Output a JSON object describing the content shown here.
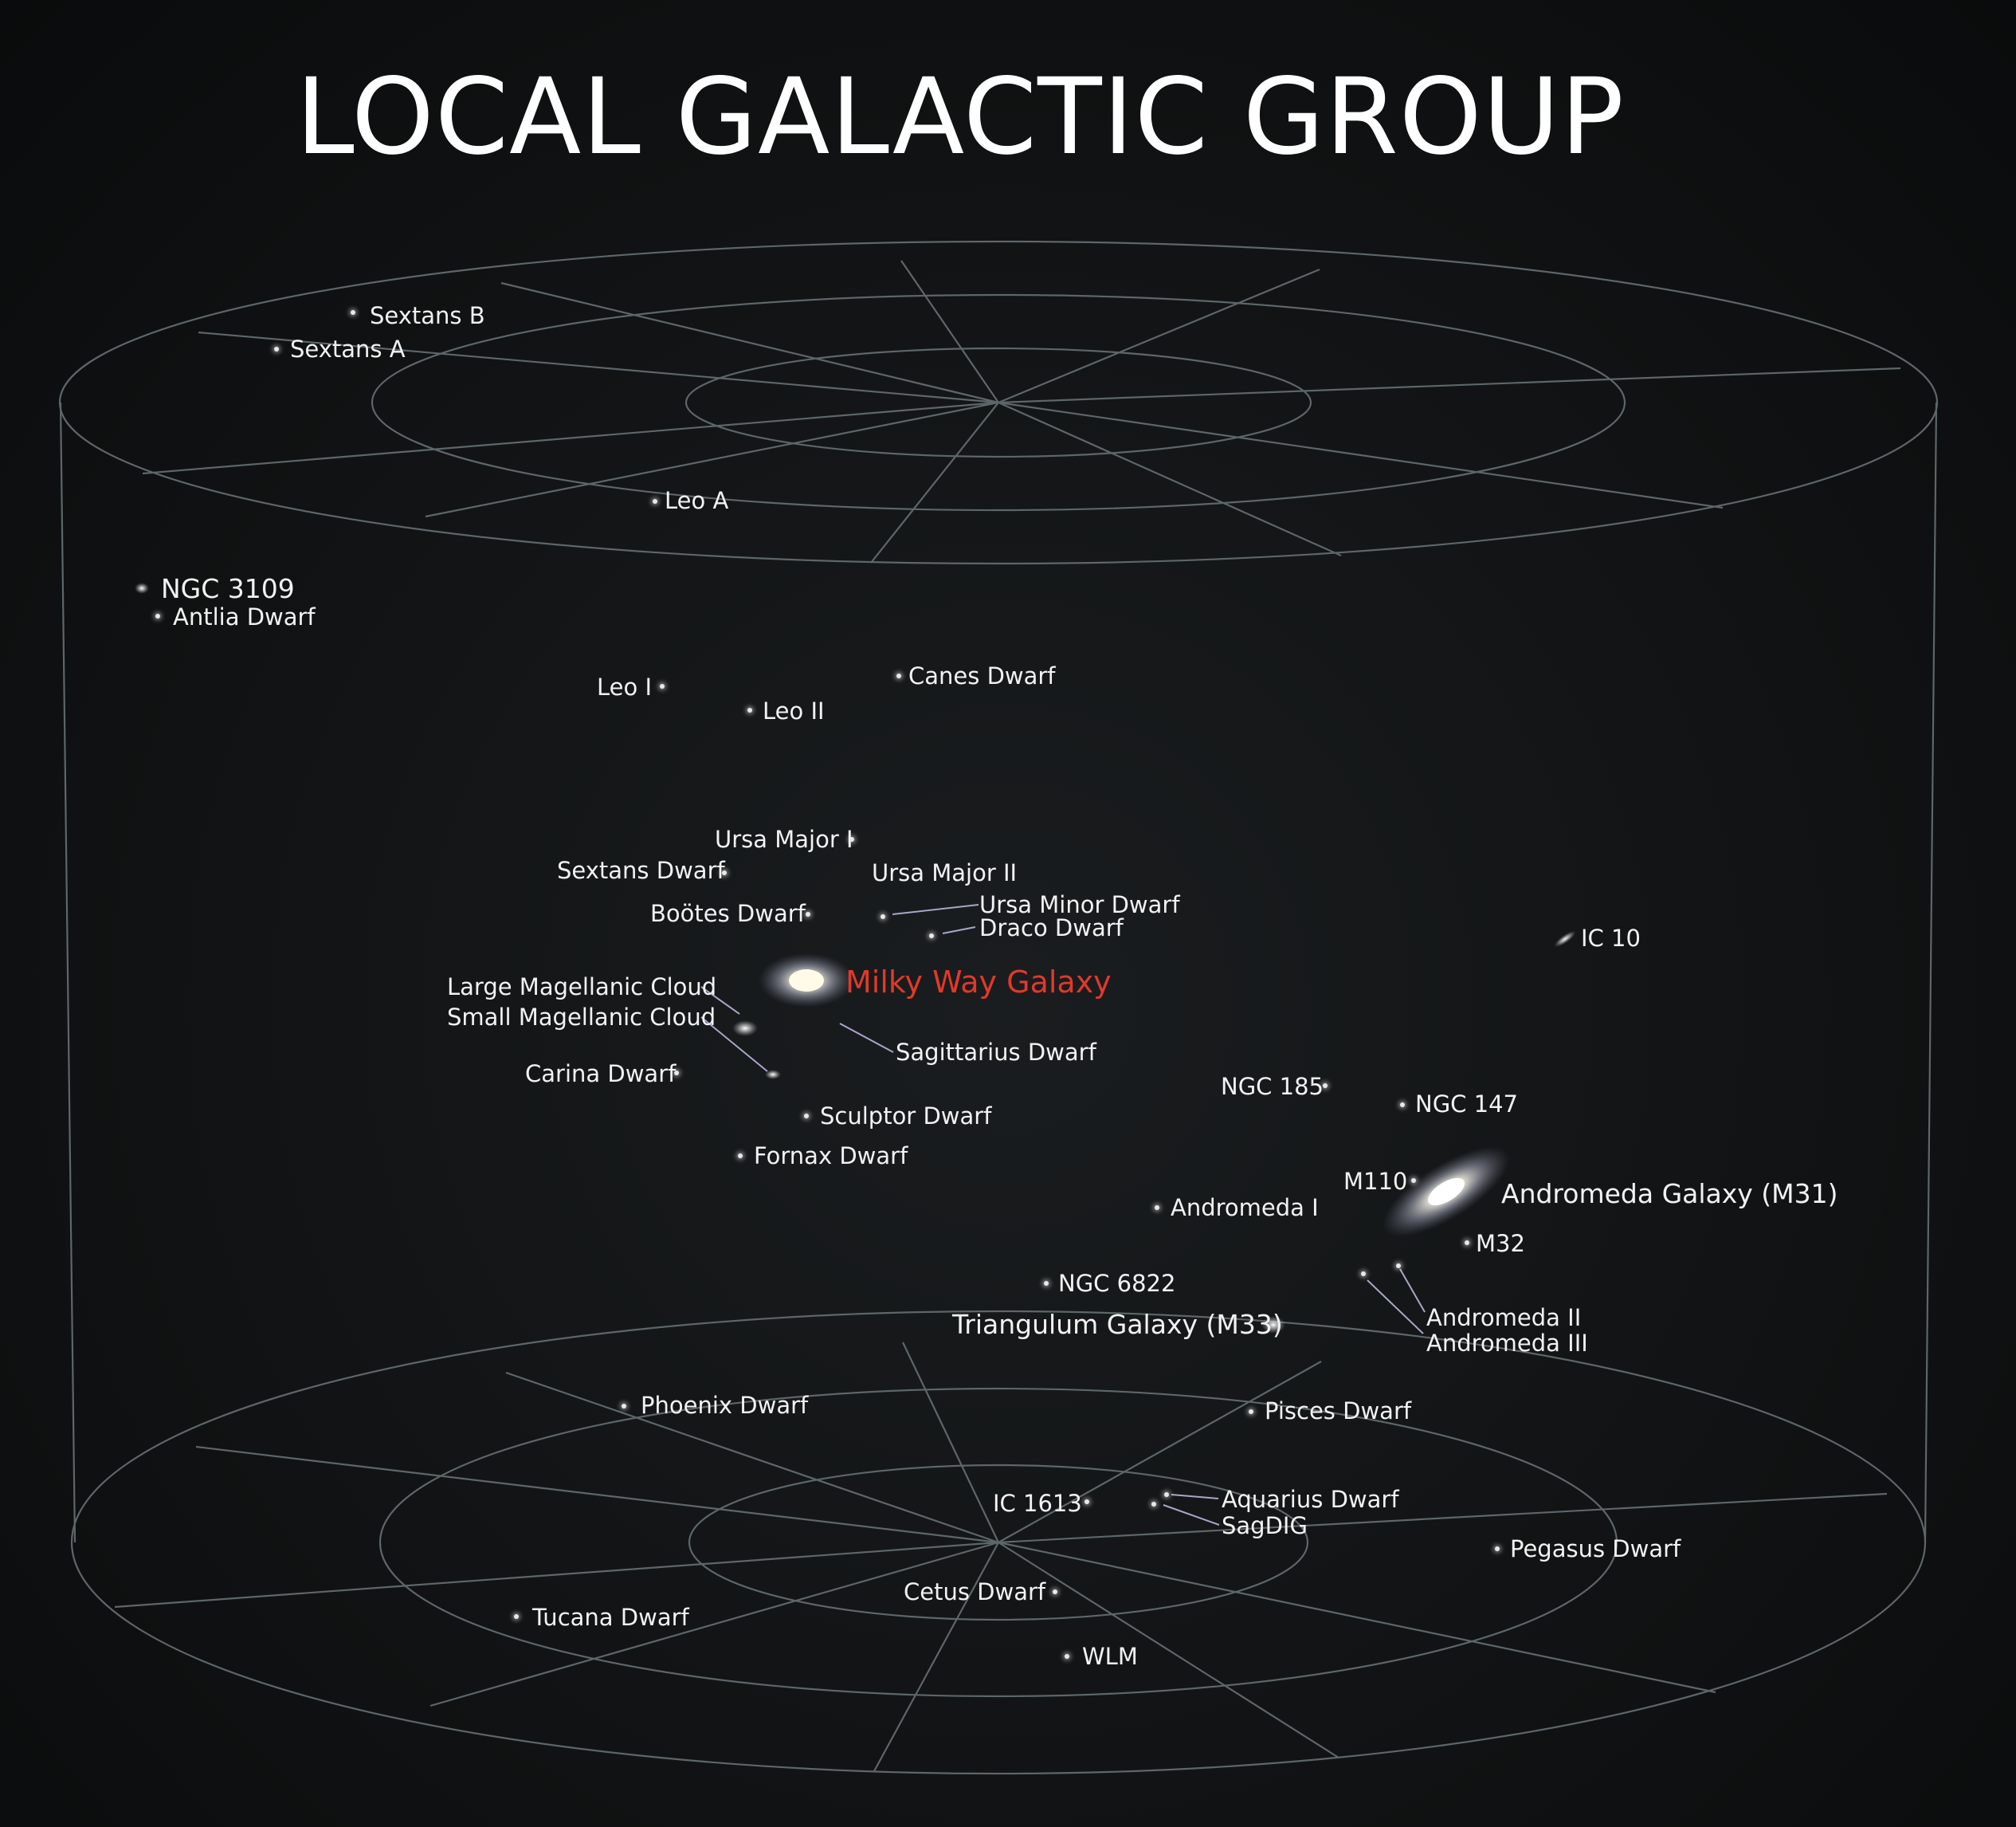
{
  "title": "LOCAL GALACTIC GROUP",
  "colors": {
    "background": "#111314",
    "grid_lines": "#5d6669",
    "label_text": "#f2f2f2",
    "highlight": "#e0392b",
    "leader_lines": "#a9a6c9"
  },
  "labels": {
    "sextans_b": "Sextans B",
    "sextans_a": "Sextans A",
    "leo_a": "Leo A",
    "ngc_3109": "NGC 3109",
    "antlia_dwarf": "Antlia Dwarf",
    "leo_i": "Leo I",
    "leo_ii": "Leo II",
    "canes_dwarf": "Canes Dwarf",
    "ursa_major_i": "Ursa Major I",
    "sextans_dwarf": "Sextans Dwarf",
    "ursa_major_ii": "Ursa Major II",
    "bootes_dwarf": "Boötes Dwarf",
    "ursa_minor_dwarf": "Ursa Minor Dwarf",
    "draco_dwarf": "Draco Dwarf",
    "ic_10": "IC 10",
    "milky_way": "Milky Way Galaxy",
    "lmc": "Large Magellanic Cloud",
    "smc": "Small Magellanic Cloud",
    "sagittarius_dwarf": "Sagittarius Dwarf",
    "carina_dwarf": "Carina Dwarf",
    "sculptor_dwarf": "Sculptor Dwarf",
    "fornax_dwarf": "Fornax Dwarf",
    "ngc_185": "NGC 185",
    "ngc_147": "NGC 147",
    "m110": "M110",
    "andromeda_galaxy": "Andromeda Galaxy (M31)",
    "andromeda_i": "Andromeda I",
    "m32": "M32",
    "ngc_6822": "NGC 6822",
    "triangulum": "Triangulum Galaxy (M33)",
    "andromeda_ii": "Andromeda II",
    "andromeda_iii": "Andromeda III",
    "phoenix_dwarf": "Phoenix Dwarf",
    "pisces_dwarf": "Pisces Dwarf",
    "ic_1613": "IC 1613",
    "aquarius_dwarf": "Aquarius Dwarf",
    "sagdig": "SagDIG",
    "pegasus_dwarf": "Pegasus Dwarf",
    "cetus_dwarf": "Cetus Dwarf",
    "tucana_dwarf": "Tucana Dwarf",
    "wlm": "WLM"
  }
}
